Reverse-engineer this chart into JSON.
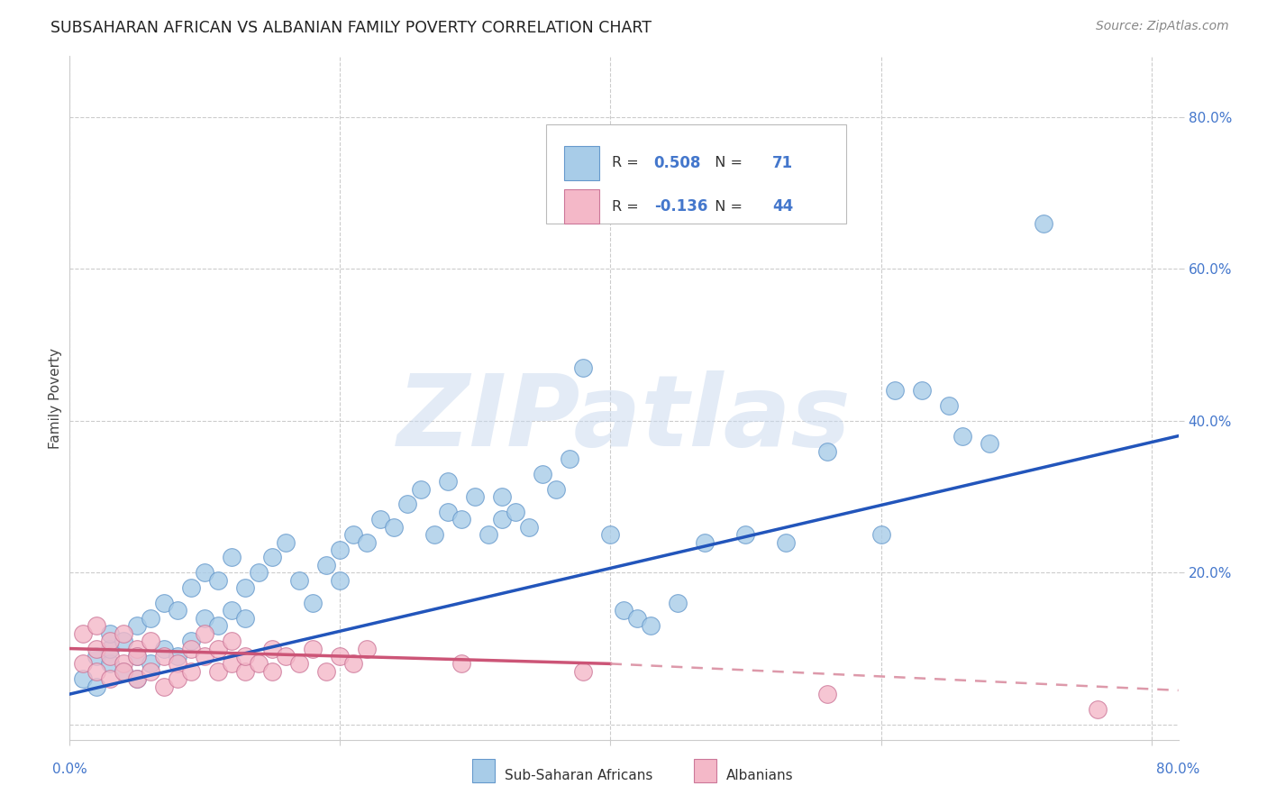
{
  "title": "SUBSAHARAN AFRICAN VS ALBANIAN FAMILY POVERTY CORRELATION CHART",
  "source": "Source: ZipAtlas.com",
  "ylabel": "Family Poverty",
  "blue_R": 0.508,
  "blue_N": 71,
  "pink_R": -0.136,
  "pink_N": 44,
  "blue_color": "#a8cce8",
  "blue_edge": "#6699cc",
  "pink_color": "#f4b8c8",
  "pink_edge": "#cc7799",
  "trendline_blue": "#2255bb",
  "trendline_pink_solid": "#cc5577",
  "trendline_pink_dashed": "#dd99aa",
  "watermark": "ZIPatlas",
  "grid_color": "#cccccc",
  "xlim": [
    0.0,
    0.82
  ],
  "ylim": [
    -0.02,
    0.88
  ],
  "blue_x": [
    0.01,
    0.02,
    0.02,
    0.03,
    0.03,
    0.03,
    0.04,
    0.04,
    0.05,
    0.05,
    0.05,
    0.06,
    0.06,
    0.07,
    0.07,
    0.08,
    0.08,
    0.09,
    0.09,
    0.1,
    0.1,
    0.11,
    0.11,
    0.12,
    0.12,
    0.13,
    0.13,
    0.14,
    0.15,
    0.16,
    0.17,
    0.18,
    0.19,
    0.2,
    0.2,
    0.21,
    0.22,
    0.23,
    0.24,
    0.25,
    0.26,
    0.27,
    0.28,
    0.28,
    0.29,
    0.3,
    0.31,
    0.32,
    0.32,
    0.33,
    0.34,
    0.35,
    0.36,
    0.37,
    0.38,
    0.4,
    0.41,
    0.42,
    0.43,
    0.45,
    0.47,
    0.5,
    0.53,
    0.56,
    0.6,
    0.61,
    0.63,
    0.65,
    0.66,
    0.68,
    0.72
  ],
  "blue_y": [
    0.06,
    0.05,
    0.09,
    0.08,
    0.1,
    0.12,
    0.07,
    0.11,
    0.06,
    0.09,
    0.13,
    0.08,
    0.14,
    0.1,
    0.16,
    0.09,
    0.15,
    0.11,
    0.18,
    0.14,
    0.2,
    0.13,
    0.19,
    0.15,
    0.22,
    0.14,
    0.18,
    0.2,
    0.22,
    0.24,
    0.19,
    0.16,
    0.21,
    0.23,
    0.19,
    0.25,
    0.24,
    0.27,
    0.26,
    0.29,
    0.31,
    0.25,
    0.28,
    0.32,
    0.27,
    0.3,
    0.25,
    0.27,
    0.3,
    0.28,
    0.26,
    0.33,
    0.31,
    0.35,
    0.47,
    0.25,
    0.15,
    0.14,
    0.13,
    0.16,
    0.24,
    0.25,
    0.24,
    0.36,
    0.25,
    0.44,
    0.44,
    0.42,
    0.38,
    0.37,
    0.66
  ],
  "pink_x": [
    0.01,
    0.01,
    0.02,
    0.02,
    0.02,
    0.03,
    0.03,
    0.03,
    0.04,
    0.04,
    0.04,
    0.05,
    0.05,
    0.05,
    0.06,
    0.06,
    0.07,
    0.07,
    0.08,
    0.08,
    0.09,
    0.09,
    0.1,
    0.1,
    0.11,
    0.11,
    0.12,
    0.12,
    0.13,
    0.13,
    0.14,
    0.15,
    0.15,
    0.16,
    0.17,
    0.18,
    0.19,
    0.2,
    0.21,
    0.22,
    0.29,
    0.38,
    0.56,
    0.76
  ],
  "pink_y": [
    0.08,
    0.12,
    0.07,
    0.1,
    0.13,
    0.09,
    0.11,
    0.06,
    0.08,
    0.12,
    0.07,
    0.1,
    0.06,
    0.09,
    0.11,
    0.07,
    0.09,
    0.05,
    0.08,
    0.06,
    0.1,
    0.07,
    0.09,
    0.12,
    0.07,
    0.1,
    0.08,
    0.11,
    0.07,
    0.09,
    0.08,
    0.07,
    0.1,
    0.09,
    0.08,
    0.1,
    0.07,
    0.09,
    0.08,
    0.1,
    0.08,
    0.07,
    0.04,
    0.02
  ],
  "blue_trend_x0": 0.0,
  "blue_trend_y0": 0.04,
  "blue_trend_x1": 0.82,
  "blue_trend_y1": 0.38,
  "pink_trend_x0": 0.0,
  "pink_trend_y0": 0.1,
  "pink_trend_x_solid_end": 0.4,
  "pink_trend_y_solid_end": 0.08,
  "pink_trend_x1": 0.82,
  "pink_trend_y1": 0.045
}
